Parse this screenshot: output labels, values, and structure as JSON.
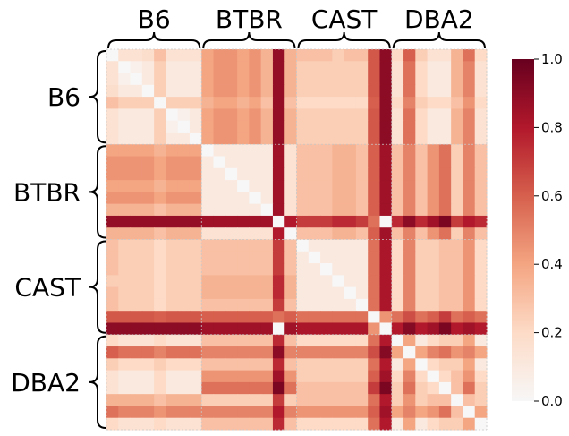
{
  "chart_data": {
    "type": "heatmap",
    "title": "",
    "xlabel": "",
    "ylabel": "",
    "groups": [
      "B6",
      "BTBR",
      "CAST",
      "DBA2"
    ],
    "group_size": 8,
    "colorbar": {
      "min": 0.0,
      "max": 1.0,
      "ticks": [
        "0.0",
        "0.2",
        "0.4",
        "0.6",
        "0.8",
        "1.0"
      ],
      "colormap": "RdBu_r (white to dark red)",
      "colors": [
        "#f7f7f7",
        "#fddbc7",
        "#f4a582",
        "#d6604d",
        "#b2182b",
        "#67001f"
      ]
    },
    "grid": false,
    "matrix": [
      [
        0.0,
        0.15,
        0.15,
        0.18,
        0.3,
        0.15,
        0.15,
        0.15,
        0.4,
        0.45,
        0.45,
        0.4,
        0.45,
        0.35,
        0.88,
        0.35,
        0.3,
        0.3,
        0.3,
        0.25,
        0.3,
        0.3,
        0.62,
        0.9,
        0.2,
        0.6,
        0.25,
        0.15,
        0.15,
        0.35,
        0.55,
        0.2
      ],
      [
        0.15,
        0.0,
        0.05,
        0.1,
        0.25,
        0.1,
        0.1,
        0.1,
        0.4,
        0.45,
        0.45,
        0.4,
        0.45,
        0.35,
        0.88,
        0.35,
        0.25,
        0.25,
        0.25,
        0.25,
        0.25,
        0.25,
        0.62,
        0.9,
        0.15,
        0.55,
        0.2,
        0.1,
        0.1,
        0.35,
        0.5,
        0.15
      ],
      [
        0.15,
        0.05,
        0.0,
        0.1,
        0.25,
        0.1,
        0.1,
        0.1,
        0.4,
        0.45,
        0.45,
        0.4,
        0.45,
        0.35,
        0.88,
        0.35,
        0.25,
        0.25,
        0.25,
        0.25,
        0.25,
        0.25,
        0.62,
        0.9,
        0.15,
        0.55,
        0.2,
        0.1,
        0.1,
        0.35,
        0.5,
        0.15
      ],
      [
        0.18,
        0.1,
        0.1,
        0.0,
        0.25,
        0.1,
        0.1,
        0.1,
        0.4,
        0.45,
        0.45,
        0.4,
        0.45,
        0.35,
        0.88,
        0.35,
        0.25,
        0.25,
        0.25,
        0.25,
        0.25,
        0.25,
        0.62,
        0.9,
        0.15,
        0.55,
        0.2,
        0.1,
        0.1,
        0.35,
        0.5,
        0.15
      ],
      [
        0.3,
        0.25,
        0.25,
        0.25,
        0.0,
        0.25,
        0.25,
        0.25,
        0.35,
        0.4,
        0.4,
        0.35,
        0.4,
        0.3,
        0.88,
        0.3,
        0.2,
        0.2,
        0.2,
        0.2,
        0.2,
        0.2,
        0.6,
        0.9,
        0.2,
        0.5,
        0.25,
        0.2,
        0.2,
        0.3,
        0.45,
        0.2
      ],
      [
        0.15,
        0.1,
        0.1,
        0.1,
        0.25,
        0.0,
        0.05,
        0.1,
        0.4,
        0.45,
        0.45,
        0.4,
        0.45,
        0.35,
        0.88,
        0.35,
        0.25,
        0.25,
        0.25,
        0.25,
        0.25,
        0.25,
        0.62,
        0.9,
        0.15,
        0.55,
        0.2,
        0.1,
        0.1,
        0.35,
        0.5,
        0.15
      ],
      [
        0.15,
        0.1,
        0.1,
        0.1,
        0.25,
        0.05,
        0.0,
        0.1,
        0.4,
        0.45,
        0.45,
        0.4,
        0.45,
        0.35,
        0.88,
        0.35,
        0.25,
        0.25,
        0.25,
        0.25,
        0.25,
        0.25,
        0.62,
        0.9,
        0.15,
        0.55,
        0.2,
        0.1,
        0.1,
        0.35,
        0.5,
        0.15
      ],
      [
        0.15,
        0.1,
        0.1,
        0.1,
        0.25,
        0.1,
        0.1,
        0.0,
        0.4,
        0.45,
        0.45,
        0.4,
        0.45,
        0.35,
        0.88,
        0.35,
        0.25,
        0.25,
        0.25,
        0.25,
        0.25,
        0.25,
        0.62,
        0.9,
        0.15,
        0.55,
        0.2,
        0.1,
        0.1,
        0.35,
        0.5,
        0.15
      ],
      [
        0.4,
        0.4,
        0.4,
        0.4,
        0.35,
        0.4,
        0.4,
        0.4,
        0.0,
        0.1,
        0.1,
        0.1,
        0.1,
        0.1,
        0.85,
        0.15,
        0.3,
        0.3,
        0.3,
        0.35,
        0.35,
        0.3,
        0.6,
        0.85,
        0.3,
        0.5,
        0.3,
        0.45,
        0.55,
        0.25,
        0.5,
        0.3
      ],
      [
        0.45,
        0.45,
        0.45,
        0.45,
        0.4,
        0.45,
        0.45,
        0.45,
        0.1,
        0.0,
        0.1,
        0.1,
        0.1,
        0.1,
        0.85,
        0.15,
        0.3,
        0.3,
        0.3,
        0.35,
        0.35,
        0.3,
        0.6,
        0.85,
        0.3,
        0.5,
        0.3,
        0.45,
        0.55,
        0.25,
        0.5,
        0.3
      ],
      [
        0.45,
        0.45,
        0.45,
        0.45,
        0.4,
        0.45,
        0.45,
        0.45,
        0.1,
        0.1,
        0.0,
        0.1,
        0.1,
        0.1,
        0.85,
        0.15,
        0.3,
        0.3,
        0.3,
        0.35,
        0.35,
        0.3,
        0.6,
        0.85,
        0.3,
        0.5,
        0.3,
        0.45,
        0.55,
        0.25,
        0.5,
        0.3
      ],
      [
        0.4,
        0.4,
        0.4,
        0.4,
        0.35,
        0.4,
        0.4,
        0.4,
        0.1,
        0.1,
        0.1,
        0.0,
        0.1,
        0.1,
        0.85,
        0.15,
        0.3,
        0.3,
        0.3,
        0.35,
        0.35,
        0.3,
        0.6,
        0.85,
        0.3,
        0.5,
        0.3,
        0.45,
        0.55,
        0.25,
        0.5,
        0.3
      ],
      [
        0.45,
        0.45,
        0.45,
        0.45,
        0.4,
        0.45,
        0.45,
        0.45,
        0.1,
        0.1,
        0.1,
        0.1,
        0.0,
        0.1,
        0.85,
        0.15,
        0.3,
        0.3,
        0.3,
        0.35,
        0.35,
        0.3,
        0.6,
        0.85,
        0.3,
        0.5,
        0.3,
        0.45,
        0.55,
        0.25,
        0.5,
        0.3
      ],
      [
        0.35,
        0.35,
        0.35,
        0.35,
        0.3,
        0.35,
        0.35,
        0.35,
        0.1,
        0.1,
        0.1,
        0.1,
        0.1,
        0.0,
        0.85,
        0.15,
        0.3,
        0.3,
        0.3,
        0.35,
        0.35,
        0.3,
        0.6,
        0.85,
        0.3,
        0.5,
        0.3,
        0.45,
        0.55,
        0.25,
        0.5,
        0.3
      ],
      [
        0.88,
        0.88,
        0.88,
        0.88,
        0.88,
        0.88,
        0.88,
        0.88,
        0.85,
        0.85,
        0.85,
        0.85,
        0.85,
        0.85,
        0.0,
        0.8,
        0.7,
        0.7,
        0.7,
        0.75,
        0.75,
        0.7,
        0.55,
        0.0,
        0.75,
        0.9,
        0.75,
        0.85,
        0.95,
        0.7,
        0.8,
        0.75
      ],
      [
        0.35,
        0.35,
        0.35,
        0.35,
        0.3,
        0.35,
        0.35,
        0.35,
        0.15,
        0.15,
        0.15,
        0.15,
        0.15,
        0.15,
        0.8,
        0.0,
        0.3,
        0.3,
        0.3,
        0.35,
        0.35,
        0.3,
        0.6,
        0.85,
        0.3,
        0.5,
        0.3,
        0.45,
        0.55,
        0.25,
        0.5,
        0.3
      ],
      [
        0.3,
        0.25,
        0.25,
        0.25,
        0.2,
        0.25,
        0.25,
        0.25,
        0.3,
        0.3,
        0.3,
        0.3,
        0.3,
        0.3,
        0.7,
        0.3,
        0.0,
        0.1,
        0.1,
        0.1,
        0.1,
        0.1,
        0.55,
        0.82,
        0.2,
        0.5,
        0.25,
        0.25,
        0.3,
        0.3,
        0.45,
        0.2
      ],
      [
        0.3,
        0.25,
        0.25,
        0.25,
        0.2,
        0.25,
        0.25,
        0.25,
        0.3,
        0.3,
        0.3,
        0.3,
        0.3,
        0.3,
        0.7,
        0.3,
        0.1,
        0.0,
        0.1,
        0.1,
        0.1,
        0.1,
        0.55,
        0.82,
        0.2,
        0.5,
        0.25,
        0.25,
        0.3,
        0.3,
        0.45,
        0.2
      ],
      [
        0.3,
        0.25,
        0.25,
        0.25,
        0.2,
        0.25,
        0.25,
        0.25,
        0.3,
        0.3,
        0.3,
        0.3,
        0.3,
        0.3,
        0.7,
        0.3,
        0.1,
        0.1,
        0.0,
        0.1,
        0.1,
        0.1,
        0.55,
        0.82,
        0.2,
        0.5,
        0.25,
        0.25,
        0.3,
        0.3,
        0.45,
        0.2
      ],
      [
        0.25,
        0.25,
        0.25,
        0.25,
        0.2,
        0.25,
        0.25,
        0.25,
        0.35,
        0.35,
        0.35,
        0.35,
        0.35,
        0.35,
        0.75,
        0.35,
        0.1,
        0.1,
        0.1,
        0.0,
        0.1,
        0.1,
        0.55,
        0.82,
        0.2,
        0.5,
        0.25,
        0.25,
        0.3,
        0.3,
        0.45,
        0.2
      ],
      [
        0.3,
        0.25,
        0.25,
        0.25,
        0.2,
        0.25,
        0.25,
        0.25,
        0.35,
        0.35,
        0.35,
        0.35,
        0.35,
        0.35,
        0.75,
        0.35,
        0.1,
        0.1,
        0.1,
        0.1,
        0.0,
        0.1,
        0.55,
        0.82,
        0.2,
        0.5,
        0.25,
        0.25,
        0.3,
        0.3,
        0.45,
        0.2
      ],
      [
        0.3,
        0.25,
        0.25,
        0.25,
        0.2,
        0.25,
        0.25,
        0.25,
        0.3,
        0.3,
        0.3,
        0.3,
        0.3,
        0.3,
        0.7,
        0.3,
        0.1,
        0.1,
        0.1,
        0.1,
        0.1,
        0.0,
        0.55,
        0.82,
        0.2,
        0.5,
        0.25,
        0.25,
        0.3,
        0.3,
        0.45,
        0.2
      ],
      [
        0.62,
        0.62,
        0.62,
        0.62,
        0.6,
        0.62,
        0.62,
        0.62,
        0.6,
        0.6,
        0.6,
        0.6,
        0.6,
        0.6,
        0.55,
        0.6,
        0.55,
        0.55,
        0.55,
        0.55,
        0.55,
        0.55,
        0.0,
        0.45,
        0.55,
        0.65,
        0.55,
        0.6,
        0.7,
        0.55,
        0.6,
        0.55
      ],
      [
        0.9,
        0.9,
        0.9,
        0.9,
        0.9,
        0.9,
        0.9,
        0.9,
        0.85,
        0.85,
        0.85,
        0.85,
        0.85,
        0.85,
        0.0,
        0.85,
        0.82,
        0.82,
        0.82,
        0.82,
        0.82,
        0.82,
        0.45,
        0.0,
        0.8,
        0.92,
        0.8,
        0.85,
        0.95,
        0.8,
        0.85,
        0.8
      ],
      [
        0.2,
        0.15,
        0.15,
        0.15,
        0.2,
        0.15,
        0.15,
        0.15,
        0.3,
        0.3,
        0.3,
        0.3,
        0.3,
        0.3,
        0.75,
        0.3,
        0.2,
        0.2,
        0.2,
        0.2,
        0.2,
        0.2,
        0.55,
        0.8,
        0.0,
        0.4,
        0.1,
        0.2,
        0.25,
        0.25,
        0.4,
        0.1
      ],
      [
        0.6,
        0.55,
        0.55,
        0.55,
        0.5,
        0.55,
        0.55,
        0.55,
        0.5,
        0.5,
        0.5,
        0.5,
        0.5,
        0.5,
        0.9,
        0.5,
        0.5,
        0.5,
        0.5,
        0.5,
        0.5,
        0.5,
        0.65,
        0.92,
        0.4,
        0.0,
        0.4,
        0.5,
        0.55,
        0.45,
        0.5,
        0.4
      ],
      [
        0.25,
        0.2,
        0.2,
        0.2,
        0.25,
        0.2,
        0.2,
        0.2,
        0.3,
        0.3,
        0.3,
        0.3,
        0.3,
        0.3,
        0.75,
        0.3,
        0.25,
        0.25,
        0.25,
        0.25,
        0.25,
        0.25,
        0.55,
        0.8,
        0.1,
        0.4,
        0.0,
        0.2,
        0.25,
        0.25,
        0.4,
        0.1
      ],
      [
        0.15,
        0.1,
        0.1,
        0.1,
        0.2,
        0.1,
        0.1,
        0.1,
        0.45,
        0.45,
        0.45,
        0.45,
        0.45,
        0.45,
        0.85,
        0.45,
        0.25,
        0.25,
        0.25,
        0.25,
        0.25,
        0.25,
        0.6,
        0.85,
        0.2,
        0.5,
        0.2,
        0.0,
        0.2,
        0.3,
        0.45,
        0.2
      ],
      [
        0.15,
        0.1,
        0.1,
        0.1,
        0.2,
        0.1,
        0.1,
        0.1,
        0.55,
        0.55,
        0.55,
        0.55,
        0.55,
        0.55,
        0.95,
        0.55,
        0.3,
        0.3,
        0.3,
        0.3,
        0.3,
        0.3,
        0.7,
        0.95,
        0.25,
        0.55,
        0.25,
        0.2,
        0.0,
        0.3,
        0.55,
        0.25
      ],
      [
        0.35,
        0.35,
        0.35,
        0.35,
        0.3,
        0.35,
        0.35,
        0.35,
        0.25,
        0.25,
        0.25,
        0.25,
        0.25,
        0.25,
        0.7,
        0.25,
        0.3,
        0.3,
        0.3,
        0.3,
        0.3,
        0.3,
        0.55,
        0.8,
        0.25,
        0.45,
        0.25,
        0.3,
        0.3,
        0.0,
        0.3,
        0.25
      ],
      [
        0.55,
        0.5,
        0.5,
        0.5,
        0.45,
        0.5,
        0.5,
        0.5,
        0.5,
        0.5,
        0.5,
        0.5,
        0.5,
        0.5,
        0.8,
        0.5,
        0.45,
        0.45,
        0.45,
        0.45,
        0.45,
        0.45,
        0.6,
        0.85,
        0.4,
        0.5,
        0.4,
        0.45,
        0.55,
        0.3,
        0.0,
        0.4
      ],
      [
        0.2,
        0.15,
        0.15,
        0.15,
        0.2,
        0.15,
        0.15,
        0.15,
        0.3,
        0.3,
        0.3,
        0.3,
        0.3,
        0.3,
        0.75,
        0.3,
        0.2,
        0.2,
        0.2,
        0.2,
        0.2,
        0.2,
        0.55,
        0.8,
        0.1,
        0.4,
        0.1,
        0.2,
        0.25,
        0.25,
        0.4,
        0.0
      ]
    ]
  }
}
